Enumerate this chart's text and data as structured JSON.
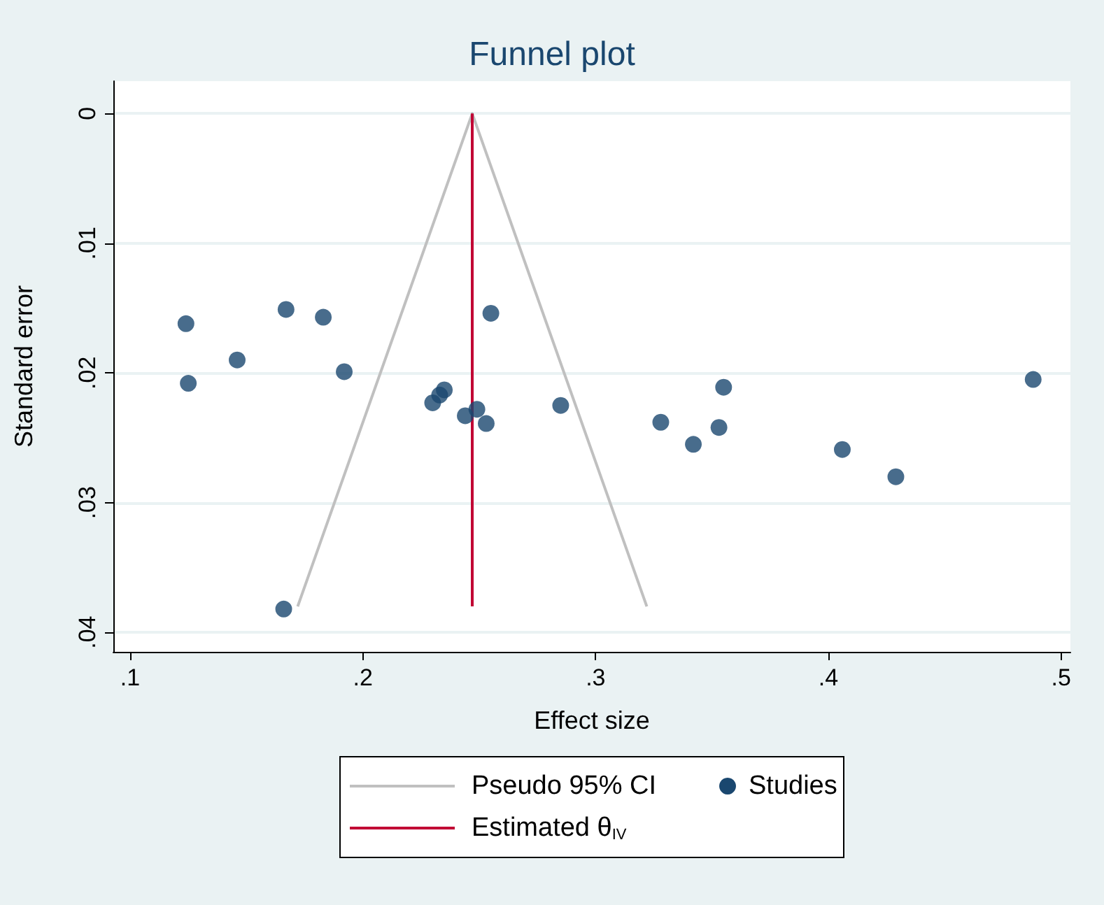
{
  "chart_data": {
    "type": "scatter",
    "title": "Funnel plot",
    "xlabel": "Effect size",
    "ylabel": "Standard error",
    "xlim": [
      0.0928,
      0.504
    ],
    "xticks": [
      {
        "value": 0.1,
        "label": ".1"
      },
      {
        "value": 0.2,
        "label": ".2"
      },
      {
        "value": 0.3,
        "label": ".3"
      },
      {
        "value": 0.4,
        "label": ".4"
      },
      {
        "value": 0.5,
        "label": ".5"
      }
    ],
    "ylim": [
      0.0415,
      -0.0025
    ],
    "yticks": [
      {
        "value": 0,
        "label": "0"
      },
      {
        "value": 0.01,
        "label": ".01"
      },
      {
        "value": 0.02,
        "label": ".02"
      },
      {
        "value": 0.03,
        "label": ".03"
      },
      {
        "value": 0.04,
        "label": ".04"
      }
    ],
    "grid": "y",
    "legend": "bottom",
    "series": [
      {
        "name": "Pseudo 95% CI",
        "type": "line",
        "color": "#c0c0c0",
        "x": [
          0.172,
          0.247,
          0.322
        ],
        "values": [
          0.038,
          0,
          0.038
        ]
      },
      {
        "name": "Studies",
        "marker": "circle",
        "color": "#1a476f",
        "x": [
          0.124,
          0.125,
          0.146,
          0.167,
          0.183,
          0.192,
          0.23,
          0.233,
          0.235,
          0.244,
          0.249,
          0.253,
          0.255,
          0.285,
          0.166,
          0.328,
          0.342,
          0.353,
          0.355,
          0.406,
          0.429,
          0.488
        ],
        "values": [
          0.0162,
          0.0208,
          0.019,
          0.0151,
          0.0157,
          0.0199,
          0.0223,
          0.0217,
          0.0213,
          0.0233,
          0.0228,
          0.0239,
          0.0154,
          0.0225,
          0.0382,
          0.0238,
          0.0255,
          0.0242,
          0.0211,
          0.0259,
          0.028,
          0.0205
        ]
      },
      {
        "name": "Estimated θ$_{IV}$",
        "type": "line",
        "color": "#c10534",
        "x": [
          0.247,
          0.247
        ],
        "values": [
          0,
          0.038
        ]
      }
    ]
  }
}
